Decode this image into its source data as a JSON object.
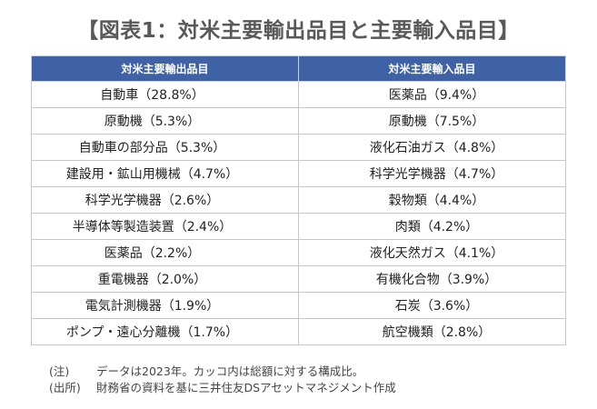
{
  "title": "【図表1：対米主要輸出品目と主要輸入品目】",
  "table": {
    "headers": [
      "対米主要輸出品目",
      "対米主要輸入品目"
    ],
    "rows": [
      [
        "自動車（28.8%）",
        "医薬品（9.4%）"
      ],
      [
        "原動機（5.3%）",
        "原動機（7.5%）"
      ],
      [
        "自動車の部分品（5.3%）",
        "液化石油ガス（4.8%）"
      ],
      [
        "建設用・鉱山用機械（4.7%）",
        "科学光学機器（4.7%）"
      ],
      [
        "科学光学機器（2.6%）",
        "穀物類（4.4%）"
      ],
      [
        "半導体等製造装置（2.4%）",
        "肉類（4.2%）"
      ],
      [
        "医薬品（2.2%）",
        "液化天然ガス（4.1%）"
      ],
      [
        "重電機器（2.0%）",
        "有機化合物（3.9%）"
      ],
      [
        "電気計測機器（1.9%）",
        "石炭（3.6%）"
      ],
      [
        "ポンプ・遠心分離機（1.7%）",
        "航空機類（2.8%）"
      ]
    ]
  },
  "notes": [
    {
      "label": "(注)",
      "text": "データは2023年。カッコ内は総額に対する構成比。"
    },
    {
      "label": "(出所)",
      "text": "財務省の資料を基に三井住友DSアセットマネジメント作成"
    }
  ],
  "colors": {
    "header_bg": "#3f62a6",
    "header_text": "#ffffff",
    "title_text": "#595959"
  }
}
